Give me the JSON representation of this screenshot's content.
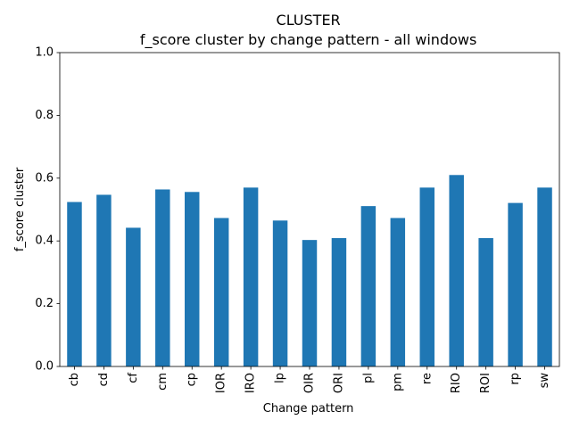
{
  "chart_data": {
    "type": "bar",
    "title": "CLUSTER",
    "subtitle": "f_score cluster by change pattern - all windows",
    "xlabel": "Change pattern",
    "ylabel": "f_score cluster",
    "ylim": [
      0.0,
      1.0
    ],
    "yticks": [
      "0.0",
      "0.2",
      "0.4",
      "0.6",
      "0.8",
      "1.0"
    ],
    "grid": false,
    "bar_color": "#1f77b4",
    "categories": [
      "cb",
      "cd",
      "cf",
      "cm",
      "cp",
      "IOR",
      "IRO",
      "lp",
      "OIR",
      "ORI",
      "pl",
      "pm",
      "re",
      "RIO",
      "ROI",
      "rp",
      "sw"
    ],
    "values": [
      0.524,
      0.547,
      0.442,
      0.564,
      0.556,
      0.473,
      0.57,
      0.465,
      0.403,
      0.409,
      0.511,
      0.473,
      0.57,
      0.61,
      0.409,
      0.521,
      0.57
    ]
  }
}
